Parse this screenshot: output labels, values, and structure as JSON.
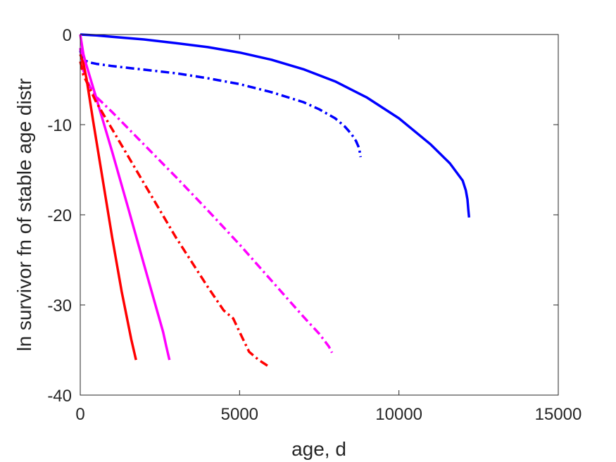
{
  "chart_data": {
    "type": "line",
    "xlabel": "age, d",
    "ylabel": "ln survivor fn of stable age distr",
    "xlim": [
      0,
      15000
    ],
    "ylim": [
      -40,
      0
    ],
    "xticks": [
      0,
      5000,
      10000,
      15000
    ],
    "xtick_labels": [
      "0",
      "5000",
      "10000",
      "15000"
    ],
    "yticks": [
      0,
      -10,
      -20,
      -30,
      -40
    ],
    "ytick_labels": [
      "0",
      "-10",
      "-20",
      "-30",
      "-40"
    ],
    "grid": false,
    "legend": "none",
    "series": [
      {
        "color": "#0000ff",
        "style": "solid",
        "x": [
          0,
          500,
          1000,
          2000,
          3000,
          4000,
          5000,
          6000,
          7000,
          8000,
          9000,
          10000,
          11000,
          11600,
          12000,
          12100,
          12150,
          12180,
          12200
        ],
        "y": [
          0,
          -0.1,
          -0.25,
          -0.55,
          -0.95,
          -1.4,
          -2.0,
          -2.8,
          -3.85,
          -5.2,
          -7.0,
          -9.3,
          -12.2,
          -14.3,
          -16.2,
          -17.3,
          -18.3,
          -19.5,
          -20.3
        ]
      },
      {
        "color": "#0000ff",
        "style": "dashdot",
        "x": [
          0,
          50,
          150,
          300,
          500,
          1000,
          2000,
          3000,
          4000,
          5000,
          6000,
          7000,
          7500,
          8000,
          8300,
          8500,
          8650,
          8750,
          8800
        ],
        "y": [
          -1.8,
          -2.5,
          -2.9,
          -3.1,
          -3.25,
          -3.5,
          -3.9,
          -4.3,
          -4.85,
          -5.5,
          -6.4,
          -7.5,
          -8.3,
          -9.3,
          -10.2,
          -11.0,
          -11.8,
          -12.6,
          -13.6
        ]
      },
      {
        "color": "#ff00ff",
        "style": "dashdot",
        "x": [
          0,
          100,
          300,
          500,
          1000,
          2000,
          3000,
          4000,
          5000,
          6000,
          7000,
          7500,
          7800,
          7900
        ],
        "y": [
          -1.5,
          -4.0,
          -5.8,
          -6.9,
          -8.6,
          -12.2,
          -15.8,
          -19.5,
          -23.3,
          -27.3,
          -31.3,
          -33.2,
          -34.6,
          -35.3
        ]
      },
      {
        "color": "#ff00ff",
        "style": "solid",
        "x": [
          0,
          100,
          200,
          500,
          1000,
          1500,
          2000,
          2400,
          2600,
          2700,
          2800
        ],
        "y": [
          0,
          -2.2,
          -3.5,
          -7.0,
          -13.0,
          -19.2,
          -25.5,
          -30.5,
          -33.0,
          -34.6,
          -36.1
        ]
      },
      {
        "color": "#ff0000",
        "style": "dashdot",
        "x": [
          0,
          100,
          300,
          500,
          1000,
          2000,
          3000,
          4000,
          4500,
          4800,
          5000,
          5300,
          5600,
          5900
        ],
        "y": [
          -3.0,
          -4.5,
          -6.0,
          -7.5,
          -10.5,
          -16.5,
          -22.5,
          -28.0,
          -30.6,
          -31.5,
          -33.0,
          -35.2,
          -36.1,
          -36.8
        ]
      },
      {
        "color": "#ff0000",
        "style": "solid",
        "x": [
          0,
          100,
          200,
          400,
          700,
          1000,
          1300,
          1600,
          1750
        ],
        "y": [
          -2.2,
          -3.2,
          -5.0,
          -9.5,
          -16.0,
          -22.5,
          -28.5,
          -33.8,
          -36.1
        ]
      }
    ]
  }
}
